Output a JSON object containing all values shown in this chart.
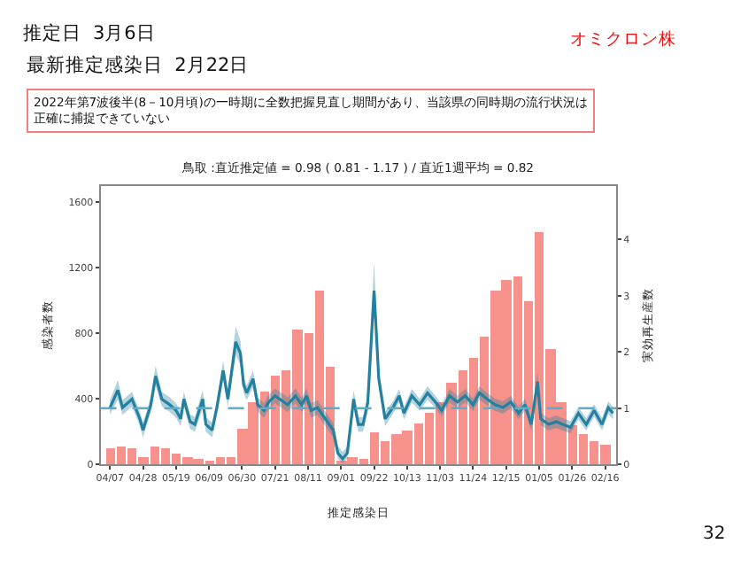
{
  "chart_data": {
    "type": "bar",
    "title": "推定日  3月6日",
    "subtitle": "鳥取 :直近推定値 = 0.98 ( 0.81 - 1.17 ) / 直近1週平均 = 0.82",
    "xlabel": "推定感染日",
    "ylabel": "感染者数",
    "y2label": "実効再生産数",
    "annotations": [
      "最新推定感染日  2月22日",
      "オミクロン株",
      "2022年第7波後半(8－10月頃)の一時期に全数把握見直し期間があり、当該県の同時期の流行状況は正確に捕捉できていない",
      "32"
    ],
    "x": [
      "2022-04-07",
      "2022-04-14",
      "2022-04-21",
      "2022-04-28",
      "2022-05-05",
      "2022-05-12",
      "2022-05-19",
      "2022-05-26",
      "2022-06-02",
      "2022-06-09",
      "2022-06-16",
      "2022-06-23",
      "2022-06-30",
      "2022-07-07",
      "2022-07-14",
      "2022-07-21",
      "2022-07-28",
      "2022-08-04",
      "2022-08-11",
      "2022-08-18",
      "2022-08-25",
      "2022-09-01",
      "2022-09-08",
      "2022-09-15",
      "2022-09-22",
      "2022-09-29",
      "2022-10-06",
      "2022-10-13",
      "2022-10-20",
      "2022-10-27",
      "2022-11-03",
      "2022-11-10",
      "2022-11-17",
      "2022-11-24",
      "2022-12-01",
      "2022-12-08",
      "2022-12-15",
      "2022-12-22",
      "2022-12-29",
      "2023-01-05",
      "2023-01-12",
      "2023-01-19",
      "2023-01-26",
      "2023-02-02",
      "2023-02-09",
      "2023-02-16"
    ],
    "series": [
      {
        "color": "#f7918b",
        "values": [
          100,
          110,
          100,
          40,
          110,
          100,
          70,
          40,
          30,
          20,
          40,
          50,
          220,
          380,
          450,
          540,
          580,
          820,
          800,
          1060,
          600,
          20,
          40,
          30,
          200,
          140,
          190,
          210,
          250,
          320,
          380,
          500,
          580,
          650,
          780,
          1060,
          1130,
          1150,
          1000,
          1420,
          700,
          380,
          240,
          190,
          140,
          120
        ]
      },
      {
        "type": "line",
        "axis": "y2",
        "color": "#23809f",
        "x": [
          "2022-04-07",
          "2022-04-12",
          "2022-04-15",
          "2022-04-21",
          "2022-04-26",
          "2022-04-28",
          "2022-05-03",
          "2022-05-06",
          "2022-05-10",
          "2022-05-15",
          "2022-05-19",
          "2022-05-22",
          "2022-05-24",
          "2022-05-28",
          "2022-05-31",
          "2022-06-05",
          "2022-06-07",
          "2022-06-11",
          "2022-06-14",
          "2022-06-18",
          "2022-06-21",
          "2022-06-26",
          "2022-06-29",
          "2022-07-01",
          "2022-07-03",
          "2022-07-07",
          "2022-07-10",
          "2022-07-14",
          "2022-07-17",
          "2022-07-21",
          "2022-07-24",
          "2022-07-29",
          "2022-08-03",
          "2022-08-07",
          "2022-08-10",
          "2022-08-13",
          "2022-08-17",
          "2022-08-22",
          "2022-08-27",
          "2022-08-30",
          "2022-09-02",
          "2022-09-05",
          "2022-09-09",
          "2022-09-12",
          "2022-09-15",
          "2022-09-18",
          "2022-09-22",
          "2022-09-25",
          "2022-09-29",
          "2022-10-04",
          "2022-10-08",
          "2022-10-11",
          "2022-10-16",
          "2022-10-21",
          "2022-10-26",
          "2022-10-31",
          "2022-11-04",
          "2022-11-09",
          "2022-11-14",
          "2022-11-19",
          "2022-11-24",
          "2022-11-28",
          "2022-12-03",
          "2022-12-08",
          "2022-12-13",
          "2022-12-18",
          "2022-12-23",
          "2022-12-27",
          "2022-12-31",
          "2023-01-04",
          "2023-01-06",
          "2023-01-11",
          "2023-01-16",
          "2023-01-20",
          "2023-01-25",
          "2023-01-30",
          "2023-02-04",
          "2023-02-09",
          "2023-02-14",
          "2023-02-18",
          "2023-02-21"
        ],
        "values": [
          1.01,
          1.32,
          1.01,
          1.16,
          0.81,
          0.61,
          1.06,
          1.57,
          1.16,
          1.06,
          0.96,
          0.81,
          1.16,
          0.76,
          0.71,
          1.16,
          0.71,
          0.61,
          1.01,
          1.67,
          1.16,
          2.18,
          1.97,
          1.42,
          1.27,
          1.52,
          1.06,
          0.96,
          1.11,
          1.22,
          1.16,
          1.06,
          1.22,
          1.06,
          1.22,
          0.96,
          1.01,
          0.81,
          0.61,
          0.2,
          0.1,
          0.2,
          1.16,
          0.71,
          0.71,
          1.1,
          3.09,
          1.52,
          0.81,
          1.01,
          1.22,
          0.91,
          1.22,
          1.06,
          1.27,
          1.11,
          0.96,
          1.22,
          1.11,
          1.22,
          1.06,
          1.27,
          1.16,
          1.06,
          1.01,
          1.11,
          0.91,
          1.06,
          0.71,
          1.47,
          0.81,
          0.71,
          0.76,
          0.71,
          0.66,
          0.91,
          0.71,
          0.96,
          0.71,
          1.01,
          0.91
        ],
        "lower": [
          0.88,
          1.15,
          0.88,
          1.03,
          0.68,
          0.48,
          0.93,
          1.4,
          1.03,
          0.93,
          0.83,
          0.68,
          1.03,
          0.63,
          0.58,
          1.0,
          0.58,
          0.48,
          0.88,
          1.5,
          1.03,
          1.95,
          1.77,
          1.27,
          1.14,
          1.37,
          0.93,
          0.83,
          0.98,
          1.09,
          1.03,
          0.93,
          1.09,
          0.93,
          1.09,
          0.83,
          0.88,
          0.68,
          0.48,
          0.1,
          0.02,
          0.1,
          1.0,
          0.58,
          0.58,
          0.95,
          2.8,
          1.35,
          0.68,
          0.9,
          1.1,
          0.8,
          1.1,
          0.95,
          1.15,
          1.0,
          0.85,
          1.1,
          1.0,
          1.1,
          0.95,
          1.15,
          1.05,
          0.95,
          0.9,
          1.0,
          0.8,
          0.95,
          0.6,
          1.3,
          0.7,
          0.6,
          0.65,
          0.6,
          0.55,
          0.8,
          0.6,
          0.85,
          0.6,
          0.9,
          0.8
        ],
        "upper": [
          1.14,
          1.5,
          1.14,
          1.29,
          0.94,
          0.74,
          1.19,
          1.75,
          1.29,
          1.19,
          1.09,
          0.94,
          1.29,
          0.89,
          0.84,
          1.32,
          0.84,
          0.74,
          1.14,
          1.85,
          1.29,
          2.45,
          2.2,
          1.57,
          1.4,
          1.67,
          1.19,
          1.09,
          1.24,
          1.35,
          1.29,
          1.19,
          1.35,
          1.19,
          1.35,
          1.09,
          1.14,
          0.94,
          0.74,
          0.32,
          0.22,
          0.32,
          1.32,
          0.84,
          0.84,
          1.25,
          3.6,
          1.7,
          0.94,
          1.12,
          1.34,
          1.02,
          1.34,
          1.17,
          1.39,
          1.22,
          1.07,
          1.34,
          1.22,
          1.34,
          1.17,
          1.39,
          1.27,
          1.17,
          1.12,
          1.22,
          1.02,
          1.17,
          0.82,
          1.65,
          0.92,
          0.82,
          0.87,
          0.82,
          0.77,
          1.02,
          0.82,
          1.07,
          0.82,
          1.12,
          1.02
        ]
      }
    ],
    "xlim": [
      "2022-04-01",
      "2023-02-23"
    ],
    "xticks": [
      {
        "value": "2022-04-07",
        "label": "04/07"
      },
      {
        "value": "2022-04-28",
        "label": "04/28"
      },
      {
        "value": "2022-05-19",
        "label": "05/19"
      },
      {
        "value": "2022-06-09",
        "label": "06/09"
      },
      {
        "value": "2022-06-30",
        "label": "06/30"
      },
      {
        "value": "2022-07-21",
        "label": "07/21"
      },
      {
        "value": "2022-08-11",
        "label": "08/11"
      },
      {
        "value": "2022-09-01",
        "label": "09/01"
      },
      {
        "value": "2022-09-22",
        "label": "09/22"
      },
      {
        "value": "2022-10-13",
        "label": "10/13"
      },
      {
        "value": "2022-11-03",
        "label": "11/03"
      },
      {
        "value": "2022-11-24",
        "label": "11/24"
      },
      {
        "value": "2022-12-15",
        "label": "12/15"
      },
      {
        "value": "2023-01-05",
        "label": "01/05"
      },
      {
        "value": "2023-01-26",
        "label": "01/26"
      },
      {
        "value": "2023-02-16",
        "label": "02/16"
      }
    ],
    "ylim": [
      0,
      1700
    ],
    "yticks": [
      0,
      400,
      800,
      1200,
      1600
    ],
    "y2lim": [
      0,
      4.95
    ],
    "y2ticks": [
      0,
      1,
      2,
      3,
      4
    ],
    "ref_lines": [
      {
        "axis": "y2",
        "value": 1,
        "color": "#5aaecb",
        "line_style": "dashed"
      }
    ],
    "marker": "none"
  }
}
